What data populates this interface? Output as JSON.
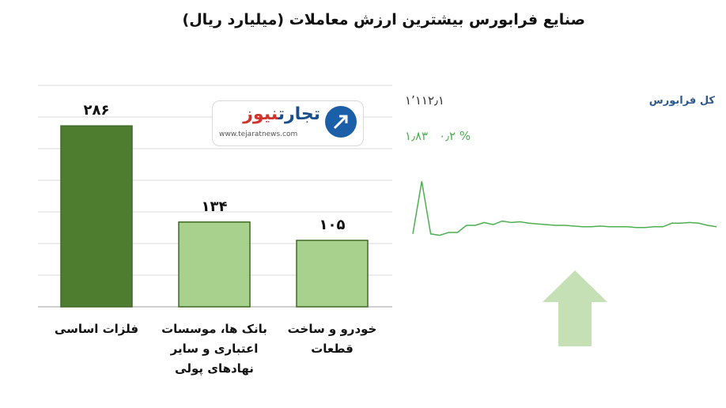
{
  "title": "صنایع فرابورس بیشترین ارزش معاملات  (میلیارد ریال)",
  "chart_data": [
    {
      "type": "bar",
      "categories": [
        "فلزات اساسی",
        "بانک ها، موسسات اعتباری و سایر نهادهای پولی",
        "خودرو و ساخت قطعات"
      ],
      "category_lines": [
        [
          "فلزات اساسی"
        ],
        [
          "بانک ها، موسسات",
          "اعتباری و سایر",
          "نهادهای پولی"
        ],
        [
          "خودرو و ساخت",
          "قطعات"
        ]
      ],
      "values": [
        286,
        134,
        105
      ],
      "value_labels": [
        "۲۸۶",
        "۱۳۴",
        "۱۰۵"
      ],
      "ylim": [
        0,
        350
      ],
      "grid": true,
      "colors": [
        "#4e7d2f",
        "#a9d18e",
        "#a9d18e"
      ]
    },
    {
      "type": "line",
      "y": [
        0.18,
        0.92,
        0.18,
        0.16,
        0.2,
        0.2,
        0.3,
        0.3,
        0.34,
        0.31,
        0.36,
        0.34,
        0.35,
        0.33,
        0.32,
        0.31,
        0.3,
        0.3,
        0.29,
        0.28,
        0.28,
        0.29,
        0.28,
        0.28,
        0.28,
        0.27,
        0.27,
        0.28,
        0.28,
        0.33,
        0.33,
        0.34,
        0.33,
        0.3,
        0.28
      ],
      "color": "#4caf50"
    }
  ],
  "logo": {
    "name_part1": "تجارت",
    "name_part2": "نیوز",
    "url": "www.tejaratnews.com"
  },
  "index": {
    "name": "کل فرابورس",
    "value": "۱٬۱۱۲٫۱",
    "change_points": "۱٫۸۳",
    "change_percent": "۰٫۲ %"
  },
  "arrow_color": "#c5e0b4"
}
